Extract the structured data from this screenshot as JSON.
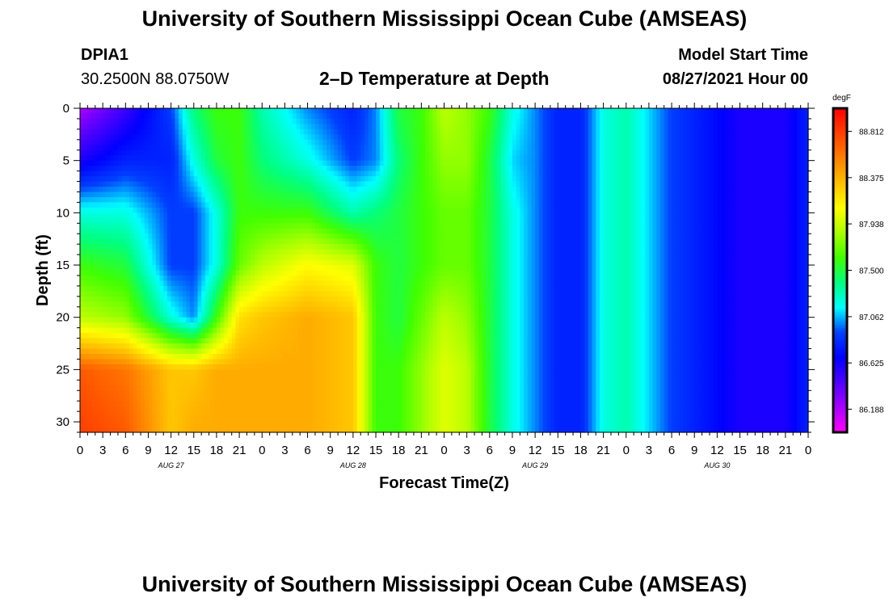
{
  "header": {
    "title": "University of Southern Mississippi Ocean Cube (AMSEAS)",
    "station": "DPIA1",
    "location": "30.2500N  88.0750W",
    "plot_title": "2–D Temperature at Depth",
    "model_start_label": "Model Start Time",
    "model_start_value": "08/27/2021 Hour 00"
  },
  "footer": {
    "title": "University of Southern Mississippi Ocean Cube (AMSEAS)"
  },
  "chart_data": {
    "type": "heatmap",
    "xlabel": "Forecast Time(Z)",
    "ylabel": "Depth (ft)",
    "x_tick_labels": [
      "0",
      "3",
      "6",
      "9",
      "12",
      "15",
      "18",
      "21",
      "0",
      "3",
      "6",
      "9",
      "12",
      "15",
      "18",
      "21",
      "0",
      "3",
      "6",
      "9",
      "12",
      "15",
      "18",
      "21",
      "0",
      "3",
      "6",
      "9",
      "12",
      "15",
      "18",
      "21",
      "0"
    ],
    "day_labels": [
      {
        "label": "AUG 27",
        "hour": 12
      },
      {
        "label": "AUG 28",
        "hour": 36
      },
      {
        "label": "AUG 29",
        "hour": 60
      },
      {
        "label": "AUG 30",
        "hour": 84
      }
    ],
    "xlim": [
      0,
      96
    ],
    "ylim": [
      0,
      31
    ],
    "y_tick_labels": [
      "0",
      "5",
      "10",
      "15",
      "20",
      "25",
      "30"
    ],
    "y_ticks": [
      0,
      5,
      10,
      15,
      20,
      25,
      30
    ],
    "depths": [
      0,
      5,
      10,
      15,
      20,
      25,
      31
    ],
    "hours": [
      0,
      6,
      12,
      15,
      18,
      21,
      24,
      30,
      36,
      39,
      42,
      45,
      48,
      51,
      54,
      57,
      60,
      63,
      66,
      69,
      72,
      75,
      78,
      81,
      84,
      87,
      90,
      93,
      96
    ],
    "values": [
      [
        86.2,
        86.5,
        86.9,
        87.4,
        87.6,
        87.6,
        87.3,
        87.0,
        86.8,
        87.0,
        87.5,
        87.6,
        87.9,
        87.8,
        87.6,
        87.2,
        87.0,
        86.8,
        86.8,
        87.2,
        87.3,
        87.1,
        86.9,
        86.8,
        86.7,
        86.6,
        86.6,
        86.6,
        86.8
      ],
      [
        86.6,
        86.8,
        86.8,
        87.2,
        87.5,
        87.6,
        87.4,
        87.2,
        86.9,
        87.0,
        87.4,
        87.6,
        87.8,
        87.8,
        87.5,
        87.1,
        87.0,
        86.8,
        86.8,
        87.2,
        87.3,
        87.1,
        86.9,
        86.8,
        86.7,
        86.6,
        86.6,
        86.6,
        86.8
      ],
      [
        87.2,
        87.2,
        86.9,
        86.9,
        87.2,
        87.6,
        87.6,
        87.6,
        87.3,
        87.4,
        87.5,
        87.6,
        87.7,
        87.7,
        87.5,
        87.2,
        87.0,
        86.8,
        86.8,
        87.2,
        87.3,
        87.1,
        86.9,
        86.8,
        86.7,
        86.6,
        86.6,
        86.6,
        86.8
      ],
      [
        87.6,
        87.5,
        86.9,
        86.9,
        87.2,
        87.7,
        87.9,
        88.1,
        88.0,
        87.6,
        87.5,
        87.6,
        87.7,
        87.7,
        87.5,
        87.2,
        87.0,
        86.8,
        86.8,
        87.2,
        87.3,
        87.1,
        86.9,
        86.8,
        86.7,
        86.6,
        86.6,
        86.6,
        86.8
      ],
      [
        87.9,
        87.8,
        87.2,
        87.0,
        87.6,
        88.2,
        88.3,
        88.4,
        88.3,
        87.6,
        87.5,
        87.7,
        87.9,
        87.8,
        87.5,
        87.2,
        87.0,
        86.8,
        86.8,
        87.2,
        87.3,
        87.1,
        86.9,
        86.8,
        86.7,
        86.6,
        86.6,
        86.6,
        86.8
      ],
      [
        88.7,
        88.6,
        88.3,
        88.3,
        88.4,
        88.4,
        88.4,
        88.4,
        88.3,
        87.6,
        87.6,
        87.8,
        88.0,
        87.9,
        87.5,
        87.2,
        87.0,
        86.8,
        86.8,
        87.2,
        87.3,
        87.1,
        86.9,
        86.8,
        86.7,
        86.6,
        86.6,
        86.6,
        86.8
      ],
      [
        88.8,
        88.7,
        88.3,
        88.4,
        88.4,
        88.4,
        88.4,
        88.4,
        88.3,
        87.6,
        87.6,
        87.8,
        88.0,
        87.9,
        87.5,
        87.2,
        87.0,
        86.8,
        86.8,
        87.2,
        87.3,
        87.1,
        86.9,
        86.8,
        86.7,
        86.6,
        86.6,
        86.6,
        86.8
      ]
    ],
    "colorbar": {
      "unit": "degF",
      "min": 85.97,
      "max": 89.03,
      "tick_labels": [
        "88.812",
        "88.375",
        "87.938",
        "87.500",
        "87.062",
        "86.625",
        "86.188"
      ],
      "tick_values": [
        88.812,
        88.375,
        87.938,
        87.5,
        87.062,
        86.625,
        86.188
      ],
      "colors": [
        "#ff00ff",
        "#aa00ff",
        "#5000ff",
        "#0000ff",
        "#0040ff",
        "#00ffff",
        "#00ff80",
        "#40ff00",
        "#aaff00",
        "#ffff00",
        "#ffc000",
        "#ff8000",
        "#ff4000",
        "#ff0000"
      ]
    }
  }
}
